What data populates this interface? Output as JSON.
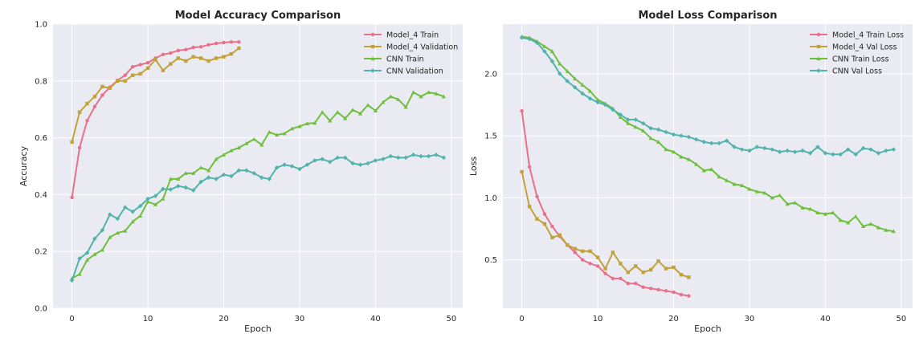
{
  "colors": {
    "plot_bg": "#eaeaf2",
    "grid": "#ffffff",
    "text": "#262626",
    "model4_train": "#e8708a",
    "model4_val": "#c1a23b",
    "cnn_train": "#6ebf3c",
    "cnn_val": "#52b3aa"
  },
  "chart_data": [
    {
      "type": "line",
      "title": "Model Accuracy Comparison",
      "xlabel": "Epoch",
      "ylabel": "Accuracy",
      "xlim": [
        -2.5,
        51.5
      ],
      "ylim": [
        0.0,
        1.0
      ],
      "xticks": [
        0,
        10,
        20,
        30,
        40,
        50
      ],
      "yticks": [
        0.0,
        0.2,
        0.4,
        0.6,
        0.8,
        1.0
      ],
      "xtick_labels": [
        "0",
        "10",
        "20",
        "30",
        "40",
        "50"
      ],
      "ytick_labels": [
        "0.0",
        "0.2",
        "0.4",
        "0.6",
        "0.8",
        "1.0"
      ],
      "grid": true,
      "legend": "top-right",
      "series": [
        {
          "name": "Model_4 Train",
          "color": "#e8708a",
          "marker": "circle",
          "values": [
            0.39,
            0.565,
            0.66,
            0.71,
            0.75,
            0.778,
            0.802,
            0.82,
            0.85,
            0.857,
            0.864,
            0.88,
            0.893,
            0.898,
            0.907,
            0.91,
            0.918,
            0.92,
            0.927,
            0.932,
            0.935,
            0.937,
            0.937
          ]
        },
        {
          "name": "Model_4 Validation",
          "color": "#c1a23b",
          "marker": "square",
          "values": [
            0.585,
            0.69,
            0.72,
            0.745,
            0.78,
            0.775,
            0.8,
            0.8,
            0.82,
            0.825,
            0.845,
            0.875,
            0.837,
            0.86,
            0.88,
            0.87,
            0.885,
            0.88,
            0.87,
            0.88,
            0.885,
            0.895,
            0.915
          ]
        },
        {
          "name": "CNN Train",
          "color": "#6ebf3c",
          "marker": "triangle",
          "values": [
            0.105,
            0.12,
            0.17,
            0.19,
            0.205,
            0.25,
            0.265,
            0.272,
            0.305,
            0.325,
            0.375,
            0.365,
            0.385,
            0.455,
            0.455,
            0.475,
            0.475,
            0.495,
            0.485,
            0.525,
            0.54,
            0.555,
            0.565,
            0.58,
            0.595,
            0.575,
            0.62,
            0.61,
            0.615,
            0.632,
            0.64,
            0.65,
            0.652,
            0.69,
            0.66,
            0.69,
            0.668,
            0.698,
            0.685,
            0.715,
            0.695,
            0.725,
            0.745,
            0.735,
            0.708,
            0.76,
            0.745,
            0.76,
            0.755,
            0.745
          ]
        },
        {
          "name": "CNN Validation",
          "color": "#52b3aa",
          "marker": "diamond",
          "values": [
            0.098,
            0.175,
            0.195,
            0.245,
            0.275,
            0.33,
            0.315,
            0.355,
            0.34,
            0.36,
            0.385,
            0.395,
            0.42,
            0.418,
            0.43,
            0.425,
            0.415,
            0.445,
            0.46,
            0.455,
            0.47,
            0.465,
            0.485,
            0.485,
            0.475,
            0.46,
            0.455,
            0.495,
            0.505,
            0.5,
            0.49,
            0.505,
            0.52,
            0.525,
            0.515,
            0.53,
            0.53,
            0.51,
            0.505,
            0.51,
            0.52,
            0.525,
            0.535,
            0.53,
            0.53,
            0.54,
            0.535,
            0.535,
            0.54,
            0.53
          ]
        }
      ]
    },
    {
      "type": "line",
      "title": "Model Loss Comparison",
      "xlabel": "Epoch",
      "ylabel": "Loss",
      "xlim": [
        -2.5,
        51.5
      ],
      "ylim": [
        0.11,
        2.4
      ],
      "xticks": [
        0,
        10,
        20,
        30,
        40,
        50
      ],
      "yticks": [
        0.5,
        1.0,
        1.5,
        2.0
      ],
      "xtick_labels": [
        "0",
        "10",
        "20",
        "30",
        "40",
        "50"
      ],
      "ytick_labels": [
        "0.5",
        "1.0",
        "1.5",
        "2.0"
      ],
      "grid": true,
      "legend": "top-right",
      "series": [
        {
          "name": "Model_4 Train Loss",
          "color": "#e8708a",
          "marker": "circle",
          "values": [
            1.7,
            1.25,
            1.01,
            0.87,
            0.77,
            0.69,
            0.62,
            0.56,
            0.5,
            0.47,
            0.45,
            0.39,
            0.35,
            0.35,
            0.31,
            0.31,
            0.28,
            0.27,
            0.26,
            0.25,
            0.24,
            0.22,
            0.21
          ]
        },
        {
          "name": "Model_4 Val Loss",
          "color": "#c1a23b",
          "marker": "square",
          "values": [
            1.21,
            0.93,
            0.83,
            0.79,
            0.68,
            0.7,
            0.62,
            0.59,
            0.57,
            0.57,
            0.52,
            0.43,
            0.56,
            0.47,
            0.4,
            0.45,
            0.4,
            0.42,
            0.49,
            0.43,
            0.44,
            0.38,
            0.36
          ]
        },
        {
          "name": "CNN Train Loss",
          "color": "#6ebf3c",
          "marker": "triangle",
          "values": [
            2.3,
            2.29,
            2.26,
            2.22,
            2.18,
            2.08,
            2.02,
            1.96,
            1.91,
            1.86,
            1.79,
            1.76,
            1.72,
            1.65,
            1.6,
            1.57,
            1.54,
            1.48,
            1.45,
            1.39,
            1.37,
            1.33,
            1.31,
            1.27,
            1.22,
            1.23,
            1.17,
            1.14,
            1.11,
            1.1,
            1.07,
            1.05,
            1.04,
            1.0,
            1.02,
            0.95,
            0.96,
            0.92,
            0.91,
            0.88,
            0.87,
            0.88,
            0.82,
            0.8,
            0.85,
            0.77,
            0.79,
            0.76,
            0.74,
            0.73
          ]
        },
        {
          "name": "CNN Val Loss",
          "color": "#52b3aa",
          "marker": "diamond",
          "values": [
            2.29,
            2.28,
            2.25,
            2.18,
            2.1,
            2.0,
            1.94,
            1.89,
            1.84,
            1.8,
            1.77,
            1.75,
            1.71,
            1.67,
            1.63,
            1.63,
            1.6,
            1.56,
            1.55,
            1.53,
            1.51,
            1.5,
            1.49,
            1.47,
            1.45,
            1.44,
            1.44,
            1.46,
            1.41,
            1.39,
            1.38,
            1.41,
            1.4,
            1.39,
            1.37,
            1.38,
            1.37,
            1.38,
            1.36,
            1.41,
            1.36,
            1.35,
            1.35,
            1.39,
            1.35,
            1.4,
            1.39,
            1.36,
            1.38,
            1.39
          ]
        }
      ]
    }
  ]
}
